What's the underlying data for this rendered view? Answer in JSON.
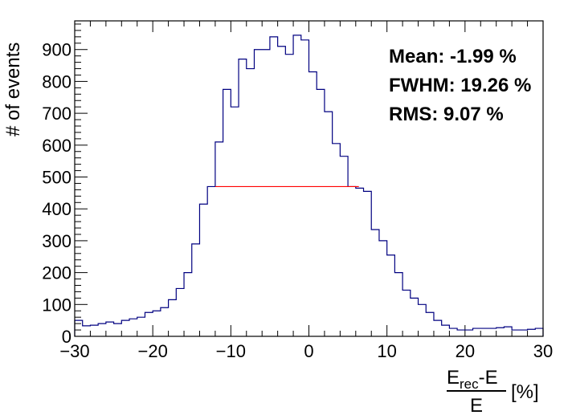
{
  "chart_data": {
    "type": "bar",
    "ylabel": "# of events",
    "xlabel": {
      "numerator_main": "E",
      "numerator_sub": "rec",
      "numerator_tail": "-E",
      "denominator": "E",
      "unit": "[%]"
    },
    "xlim": [
      -30,
      30
    ],
    "ylim": [
      0,
      990
    ],
    "x_ticks": [
      "−30",
      "−20",
      "−10",
      "0",
      "10",
      "20",
      "30"
    ],
    "y_ticks": [
      "0",
      "100",
      "200",
      "300",
      "400",
      "500",
      "600",
      "700",
      "800",
      "900"
    ],
    "bin_edges_start": -30,
    "bin_width": 1,
    "values": [
      50,
      33,
      35,
      40,
      45,
      40,
      50,
      55,
      60,
      75,
      80,
      90,
      115,
      150,
      200,
      290,
      415,
      470,
      610,
      775,
      720,
      870,
      840,
      900,
      900,
      940,
      910,
      885,
      945,
      930,
      830,
      775,
      705,
      605,
      565,
      470,
      465,
      455,
      335,
      300,
      255,
      200,
      145,
      120,
      100,
      75,
      50,
      35,
      25,
      20,
      20,
      25,
      25,
      25,
      27,
      30,
      20,
      20,
      22,
      25
    ],
    "fwhm_line": {
      "x1": -12.0,
      "x2": 6.4,
      "y": 470
    },
    "stats": {
      "mean": "Mean: -1.99 %",
      "fwhm": "FWHM: 19.26 %",
      "rms": "RMS: 9.07 %"
    },
    "colors": {
      "histogram": "#000080",
      "fwhm_line": "#ff0000",
      "frame": "#000000"
    },
    "grid": false
  }
}
